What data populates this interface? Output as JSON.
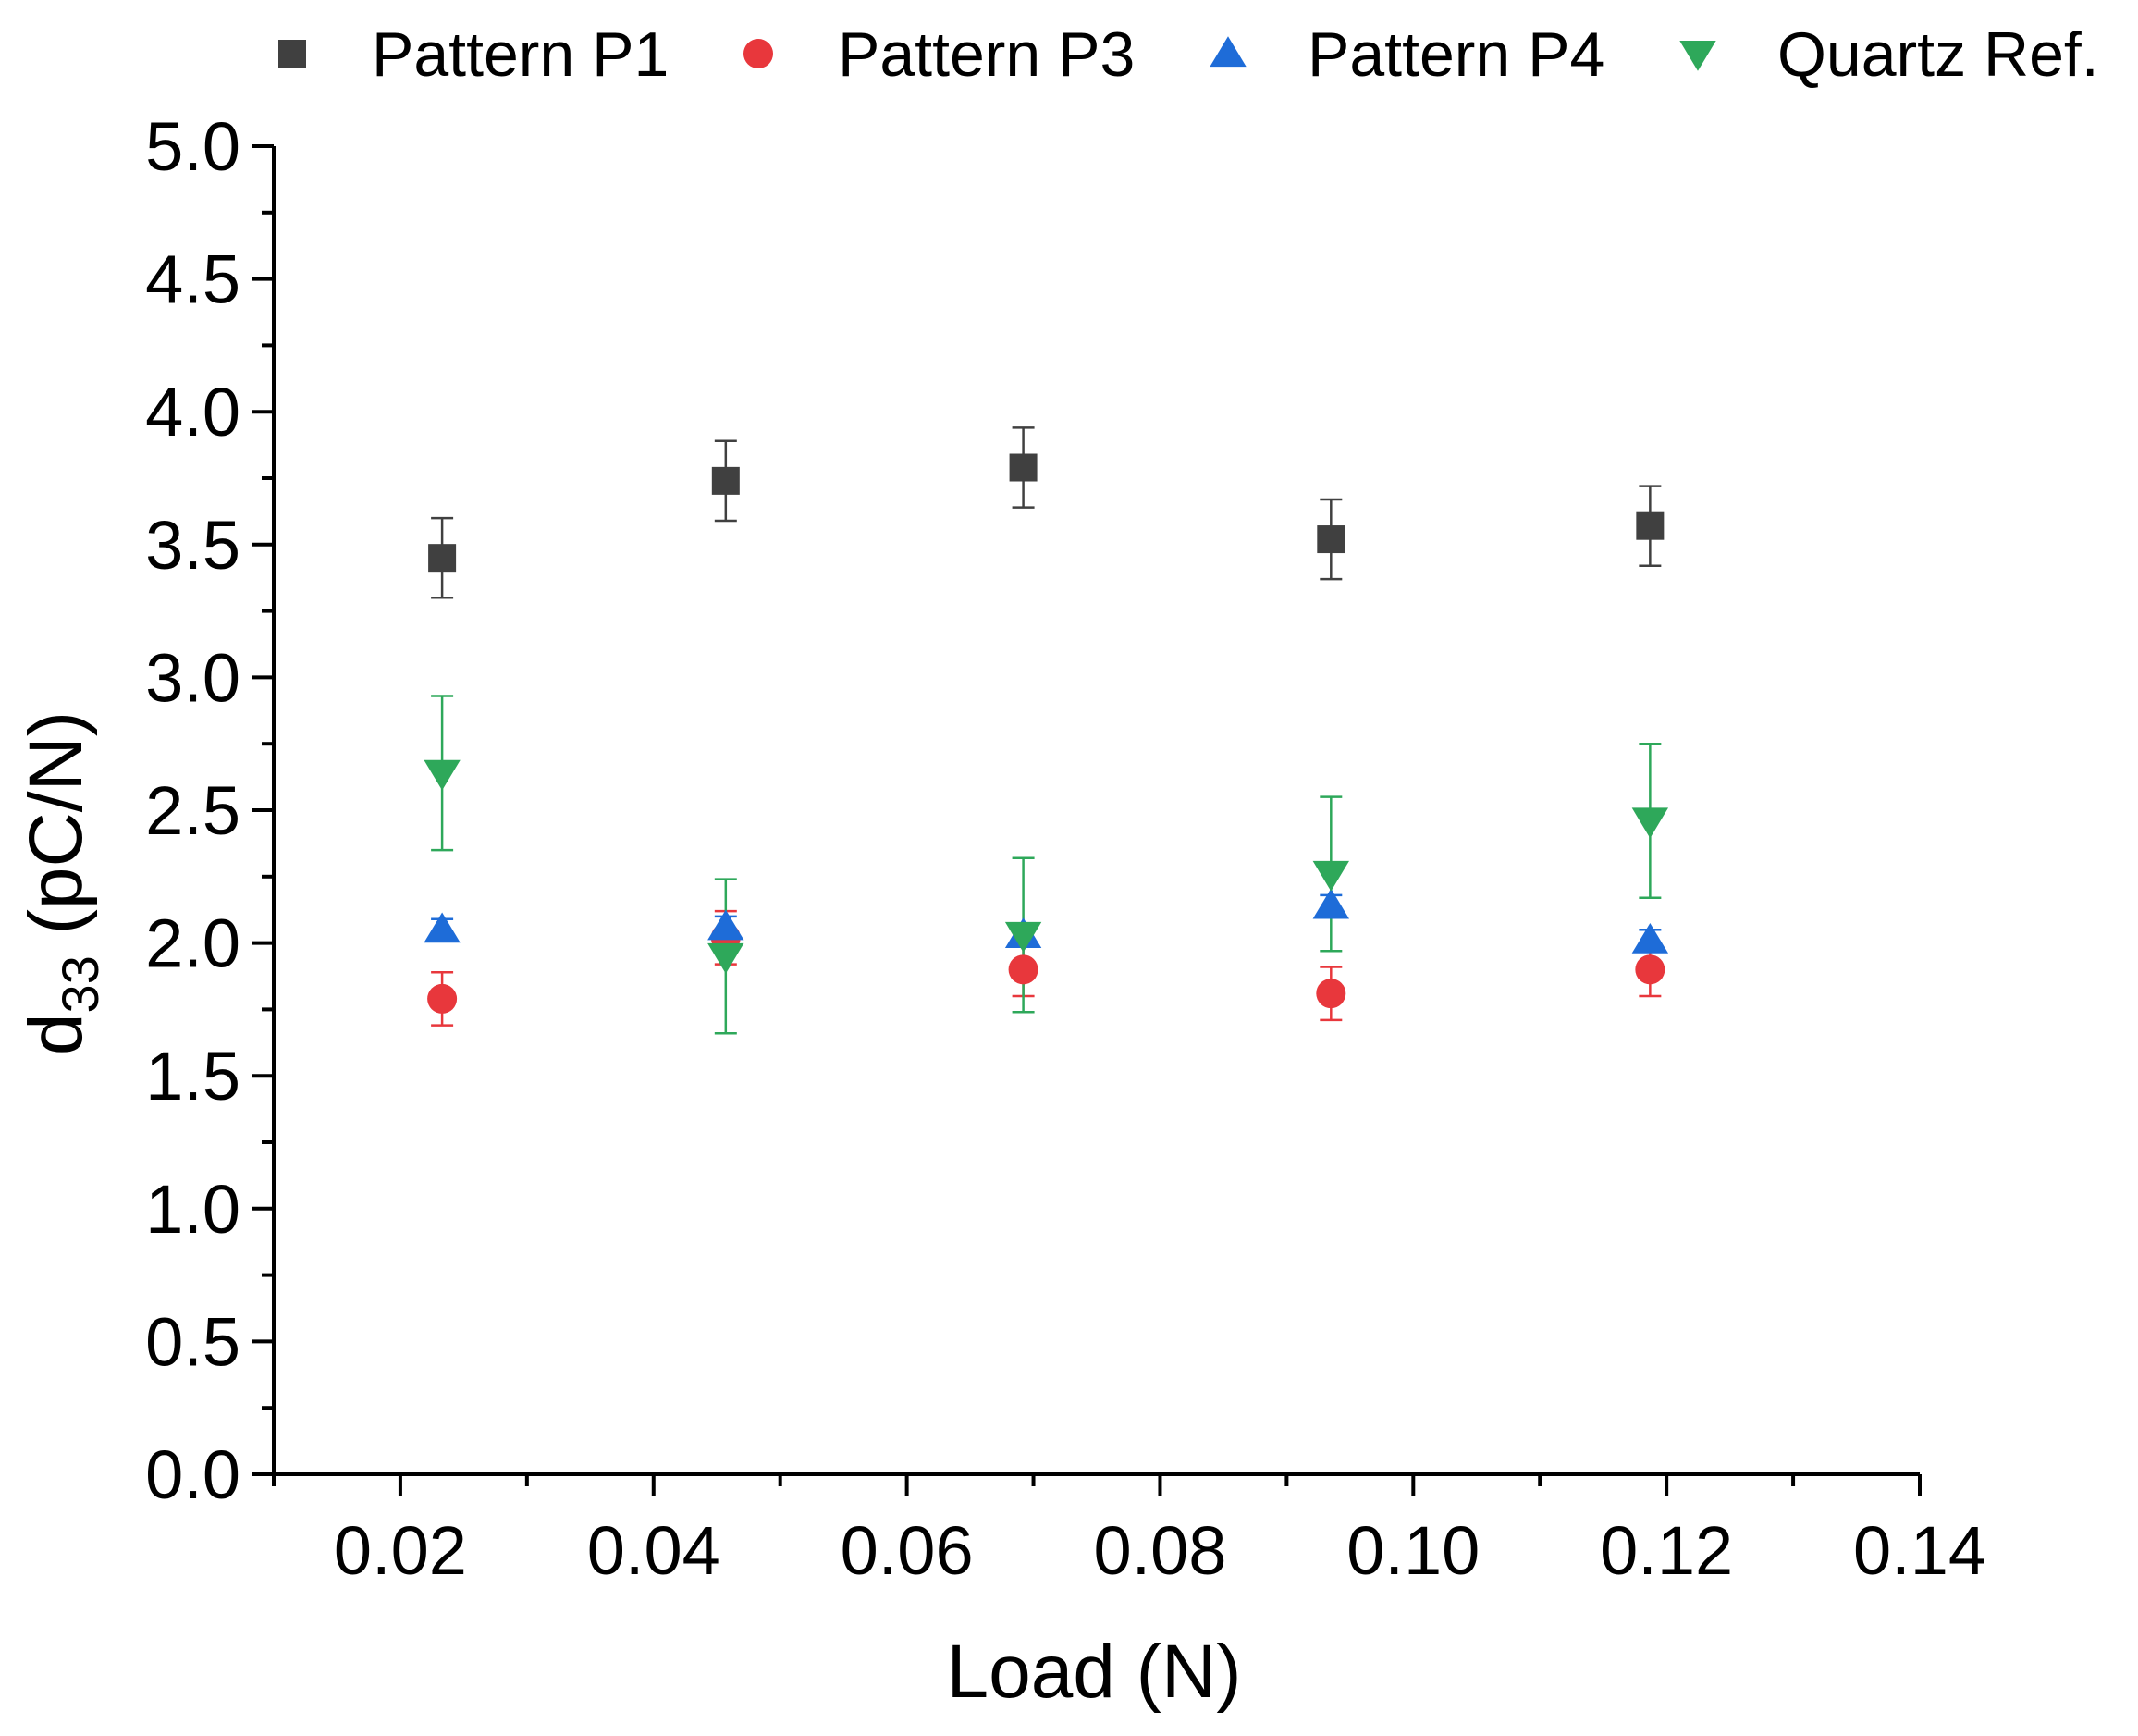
{
  "chart_data": {
    "type": "scatter",
    "title": "",
    "xlabel": "Load (N)",
    "ylabel_main": "d",
    "ylabel_sub": "33",
    "ylabel_rest": " (pC/N)",
    "xlim": [
      0.01,
      0.14
    ],
    "ylim": [
      0.0,
      5.0
    ],
    "x_ticks": [
      0.02,
      0.04,
      0.06,
      0.08,
      0.1,
      0.12,
      0.14
    ],
    "x_tick_labels": [
      "0.02",
      "0.04",
      "0.06",
      "0.08",
      "0.10",
      "0.12",
      "0.14"
    ],
    "x_minor_ticks": [
      0.01,
      0.03,
      0.05,
      0.07,
      0.09,
      0.11,
      0.13
    ],
    "y_ticks": [
      0.0,
      0.5,
      1.0,
      1.5,
      2.0,
      2.5,
      3.0,
      3.5,
      4.0,
      4.5,
      5.0
    ],
    "y_tick_labels": [
      "0.0",
      "0.5",
      "1.0",
      "1.5",
      "2.0",
      "2.5",
      "3.0",
      "3.5",
      "4.0",
      "4.5",
      "5.0"
    ],
    "y_minor_ticks": [
      0.25,
      0.75,
      1.25,
      1.75,
      2.25,
      2.75,
      3.25,
      3.75,
      4.25,
      4.75
    ],
    "grid": false,
    "legend_position": "top",
    "series": [
      {
        "name": "Pattern P1",
        "marker": "square",
        "color": "#404040",
        "x": [
          0.0233,
          0.0457,
          0.0692,
          0.0935,
          0.1187
        ],
        "y": [
          3.45,
          3.74,
          3.79,
          3.52,
          3.57
        ],
        "err": [
          0.15,
          0.15,
          0.15,
          0.15,
          0.15
        ]
      },
      {
        "name": "Pattern P3",
        "marker": "circle",
        "color": "#e8373c",
        "x": [
          0.0233,
          0.0457,
          0.0692,
          0.0935,
          0.1187
        ],
        "y": [
          1.79,
          2.02,
          1.9,
          1.81,
          1.9
        ],
        "err": [
          0.1,
          0.1,
          0.1,
          0.1,
          0.1
        ]
      },
      {
        "name": "Pattern P4",
        "marker": "triangle-up",
        "color": "#1e6cd8",
        "x": [
          0.0233,
          0.0457,
          0.0692,
          0.0935,
          0.1187
        ],
        "y": [
          2.05,
          2.06,
          2.03,
          2.14,
          2.01
        ],
        "err": [
          0.04,
          0.04,
          0.04,
          0.04,
          0.04
        ]
      },
      {
        "name": "Quartz Ref.",
        "marker": "triangle-down",
        "color": "#2ea85a",
        "x": [
          0.0233,
          0.0457,
          0.0692,
          0.0935,
          0.1187
        ],
        "y": [
          2.64,
          1.95,
          2.03,
          2.26,
          2.46
        ],
        "err": [
          0.29,
          0.29,
          0.29,
          0.29,
          0.29
        ]
      }
    ]
  }
}
